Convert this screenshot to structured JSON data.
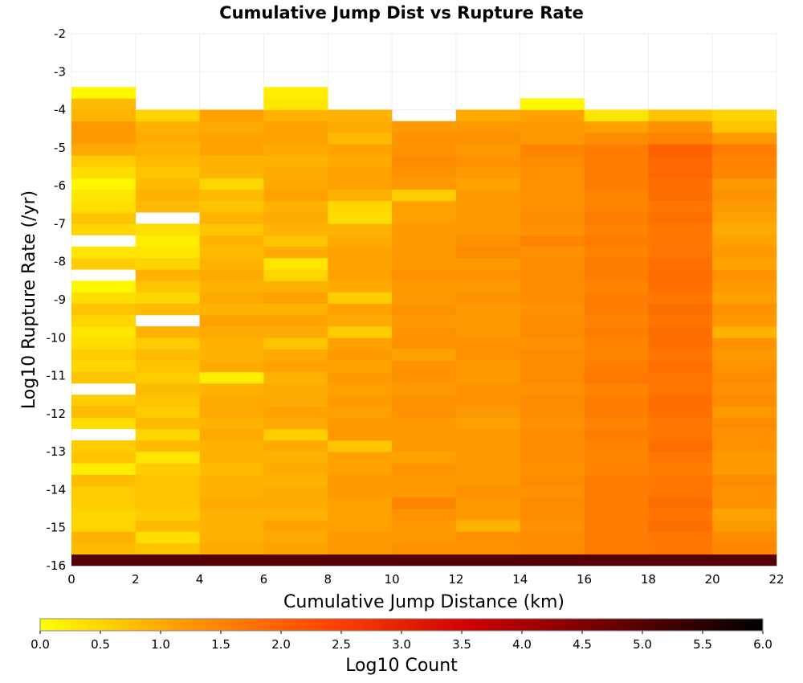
{
  "chart_data": {
    "type": "heatmap",
    "title": "Cumulative Jump Dist vs Rupture Rate",
    "xlabel": "Cumulative Jump Distance (km)",
    "ylabel": "Log10 Rupture Rate (/yr)",
    "colorbar_label": "Log10 Count",
    "xlim": [
      0,
      22
    ],
    "ylim": [
      -16,
      -2
    ],
    "x_ticks": [
      "0",
      "2",
      "4",
      "6",
      "8",
      "10",
      "12",
      "14",
      "16",
      "18",
      "20",
      "22"
    ],
    "y_ticks": [
      "-2",
      "-3",
      "-4",
      "-5",
      "-6",
      "-7",
      "-8",
      "-9",
      "-10",
      "-11",
      "-12",
      "-13",
      "-14",
      "-15",
      "-16"
    ],
    "colorbar_ticks": [
      "0.0",
      "0.5",
      "1.0",
      "1.5",
      "2.0",
      "2.5",
      "3.0",
      "3.5",
      "4.0",
      "4.5",
      "5.0",
      "5.5",
      "6.0"
    ],
    "colorbar_range": [
      0,
      6
    ],
    "colormap": [
      "#ffff00",
      "#ff9900",
      "#ff4400",
      "#cc0000",
      "#660000",
      "#000000"
    ],
    "x_bin_edges": [
      0,
      2,
      4,
      6,
      8,
      10,
      12,
      14,
      16,
      18,
      20,
      22
    ],
    "y_bin_edges": [
      -16,
      -15.7,
      -15.4,
      -15.1,
      -14.8,
      -14.5,
      -14.2,
      -13.9,
      -13.6,
      -13.3,
      -13.0,
      -12.7,
      -12.4,
      -12.1,
      -11.8,
      -11.5,
      -11.2,
      -10.9,
      -10.6,
      -10.3,
      -10.0,
      -9.7,
      -9.4,
      -9.1,
      -8.8,
      -8.5,
      -8.2,
      -7.9,
      -7.6,
      -7.3,
      -7.0,
      -6.7,
      -6.4,
      -6.1,
      -5.8,
      -5.5,
      -5.2,
      -4.9,
      -4.6,
      -4.3,
      -4.0,
      -3.7,
      -3.4
    ],
    "values_note_rows_bottom_to_top": "values[i][j] = log10 count for y bin i (from -16 upward) and x bin j; null = empty",
    "values": [
      [
        5.0,
        5.0,
        5.0,
        5.0,
        5.0,
        5.0,
        5.0,
        5.0,
        5.0,
        5.0,
        5.0
      ],
      [
        0.8,
        0.7,
        1.0,
        1.1,
        1.2,
        1.3,
        1.3,
        1.4,
        1.6,
        1.7,
        1.5
      ],
      [
        0.9,
        0.4,
        0.9,
        1.0,
        1.2,
        1.2,
        1.3,
        1.4,
        1.6,
        1.7,
        1.4
      ],
      [
        0.5,
        0.8,
        0.9,
        1.1,
        1.1,
        1.2,
        0.9,
        1.3,
        1.6,
        1.8,
        1.2
      ],
      [
        0.5,
        0.6,
        0.9,
        0.9,
        1.1,
        1.3,
        1.2,
        1.4,
        1.6,
        1.7,
        1.1
      ],
      [
        0.6,
        0.7,
        1.0,
        1.0,
        1.1,
        1.5,
        1.2,
        1.4,
        1.6,
        1.8,
        1.3
      ],
      [
        0.6,
        0.7,
        0.9,
        1.0,
        1.2,
        1.2,
        1.3,
        1.3,
        1.6,
        1.7,
        1.3
      ],
      [
        0.8,
        0.7,
        0.9,
        0.9,
        1.2,
        1.2,
        1.2,
        1.4,
        1.6,
        1.7,
        1.4
      ],
      [
        0.2,
        0.6,
        0.8,
        1.0,
        1.1,
        1.3,
        1.2,
        1.3,
        1.5,
        1.6,
        1.2
      ],
      [
        0.7,
        0.3,
        0.9,
        0.9,
        1.1,
        1.1,
        1.2,
        1.4,
        1.5,
        1.7,
        1.2
      ],
      [
        0.6,
        0.8,
        0.9,
        1.0,
        0.7,
        1.2,
        1.2,
        1.4,
        1.5,
        1.8,
        1.3
      ],
      [
        null,
        0.5,
        1.0,
        0.6,
        1.2,
        1.2,
        1.2,
        1.4,
        1.6,
        1.7,
        1.3
      ],
      [
        0.4,
        0.8,
        0.9,
        1.0,
        1.2,
        1.2,
        1.1,
        1.3,
        1.5,
        1.7,
        1.4
      ],
      [
        0.8,
        0.6,
        1.0,
        1.1,
        1.1,
        1.3,
        1.2,
        1.4,
        1.6,
        1.8,
        1.2
      ],
      [
        0.6,
        0.7,
        1.0,
        1.0,
        1.2,
        1.3,
        1.3,
        1.4,
        1.6,
        1.8,
        1.4
      ],
      [
        null,
        0.8,
        0.9,
        1.0,
        1.1,
        1.2,
        1.3,
        1.3,
        1.5,
        1.7,
        1.3
      ],
      [
        0.7,
        0.6,
        0.2,
        0.9,
        1.2,
        1.3,
        1.2,
        1.4,
        1.7,
        1.7,
        1.4
      ],
      [
        0.5,
        0.7,
        1.0,
        1.1,
        1.1,
        1.3,
        1.2,
        1.4,
        1.6,
        1.8,
        1.3
      ],
      [
        0.6,
        0.8,
        0.9,
        1.0,
        1.2,
        1.1,
        1.3,
        1.4,
        1.5,
        1.7,
        1.2
      ],
      [
        0.4,
        0.6,
        0.9,
        0.7,
        1.1,
        1.3,
        1.3,
        1.3,
        1.5,
        1.8,
        1.3
      ],
      [
        0.3,
        0.9,
        1.0,
        1.0,
        0.6,
        1.3,
        1.2,
        1.4,
        1.6,
        1.8,
        0.9
      ],
      [
        0.5,
        null,
        1.1,
        1.1,
        1.0,
        1.2,
        1.2,
        1.4,
        1.5,
        1.7,
        1.2
      ],
      [
        0.7,
        0.8,
        0.9,
        0.9,
        1.1,
        1.3,
        1.2,
        1.3,
        1.6,
        1.8,
        1.3
      ],
      [
        0.4,
        0.5,
        1.0,
        1.1,
        0.6,
        1.2,
        1.3,
        1.4,
        1.6,
        1.7,
        1.1
      ],
      [
        0.1,
        0.7,
        0.9,
        0.9,
        1.0,
        1.2,
        1.2,
        1.4,
        1.5,
        1.8,
        1.2
      ],
      [
        null,
        0.9,
        1.0,
        0.5,
        1.1,
        1.3,
        1.3,
        1.4,
        1.6,
        1.8,
        1.3
      ],
      [
        0.6,
        0.5,
        0.9,
        0.3,
        1.1,
        1.2,
        1.2,
        1.4,
        1.6,
        1.8,
        1.1
      ],
      [
        0.3,
        0.3,
        0.8,
        1.0,
        1.1,
        1.2,
        1.4,
        1.3,
        1.5,
        1.7,
        1.2
      ],
      [
        null,
        0.2,
        0.9,
        0.7,
        1.0,
        1.2,
        1.3,
        1.5,
        1.6,
        1.7,
        1.1
      ],
      [
        0.5,
        0.4,
        0.7,
        0.9,
        0.9,
        1.2,
        1.2,
        1.3,
        1.5,
        1.7,
        1.0
      ],
      [
        0.7,
        null,
        0.9,
        1.0,
        0.4,
        1.1,
        1.2,
        1.4,
        1.6,
        1.8,
        1.1
      ],
      [
        0.4,
        0.8,
        0.7,
        0.9,
        0.5,
        1.1,
        1.2,
        1.3,
        1.5,
        1.7,
        1.2
      ],
      [
        0.3,
        0.9,
        0.8,
        1.1,
        0.9,
        0.6,
        1.2,
        1.3,
        1.5,
        1.8,
        1.3
      ],
      [
        0.1,
        0.8,
        0.5,
        1.0,
        1.1,
        1.2,
        1.1,
        1.3,
        1.6,
        1.8,
        1.2
      ],
      [
        0.4,
        0.7,
        0.9,
        1.0,
        1.1,
        1.3,
        1.2,
        1.3,
        1.6,
        1.9,
        1.5
      ],
      [
        0.6,
        0.8,
        0.9,
        0.9,
        1.0,
        1.4,
        1.3,
        1.4,
        1.6,
        1.9,
        1.5
      ],
      [
        1.0,
        0.9,
        1.1,
        1.0,
        1.1,
        1.3,
        1.2,
        1.5,
        1.6,
        2.0,
        1.6
      ],
      [
        1.2,
        1.0,
        1.1,
        1.1,
        0.8,
        1.3,
        1.3,
        1.2,
        1.4,
        1.5,
        1.2
      ],
      [
        1.2,
        0.9,
        1.0,
        1.1,
        1.0,
        1.2,
        1.2,
        1.2,
        1.1,
        1.3,
        0.7
      ],
      [
        0.9,
        0.5,
        1.1,
        0.9,
        0.9,
        null,
        1.0,
        1.1,
        0.3,
        0.7,
        0.5
      ],
      [
        0.8,
        null,
        null,
        0.3,
        null,
        null,
        null,
        0.1,
        null,
        null,
        null
      ],
      [
        0.1,
        null,
        null,
        0.2,
        null,
        null,
        null,
        null,
        null,
        null,
        null
      ]
    ]
  }
}
